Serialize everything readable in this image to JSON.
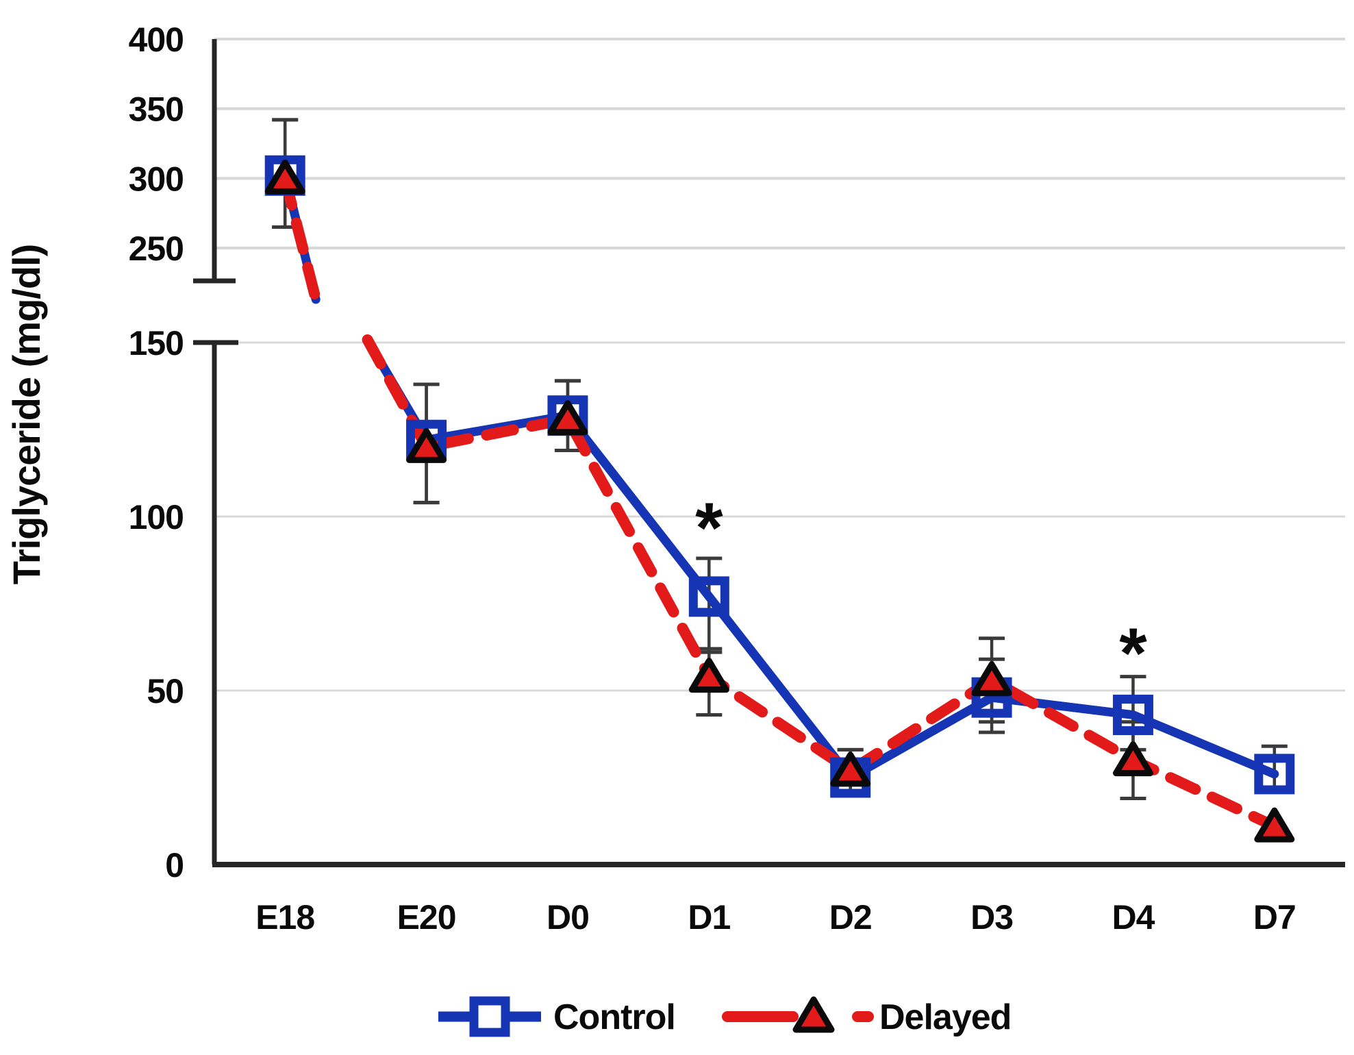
{
  "figure": {
    "background": "#ffffff",
    "description": "Line chart with broken y-axis comparing triglyceride levels of Control and Delayed groups across developmental time points"
  },
  "y_axis": {
    "label": "Triglyceride (mg/dl)",
    "upper_ticks": [
      "400",
      "350",
      "300",
      "250"
    ],
    "lower_ticks": [
      "150",
      "100",
      "50",
      "0"
    ]
  },
  "x_axis": {
    "labels": [
      "E18",
      "E20",
      "D0",
      "D1",
      "D2",
      "D3",
      "D4",
      "D7"
    ]
  },
  "legend": {
    "items": [
      {
        "label": "Control",
        "color": "#1535B5",
        "marker": "open-square",
        "line": "solid"
      },
      {
        "label": "Delayed",
        "color": "#E31A1A",
        "marker": "filled-triangle",
        "line": "dashed"
      }
    ]
  },
  "colors": {
    "control_blue": "#1535B5",
    "delayed_red": "#E31A1A",
    "triangle_edge": "#0a0a0a",
    "axis": "#262626",
    "grid": "#d8d8d8",
    "error_bar": "#3a3a3a",
    "text": "#0a0a0a"
  },
  "chart_data": {
    "type": "line",
    "title": "",
    "xlabel": "",
    "ylabel": "Triglyceride (mg/dl)",
    "grid": true,
    "legend_position": "bottom",
    "broken_y_axis": {
      "upper_range": [
        250,
        400
      ],
      "upper_ticks": [
        400,
        350,
        300,
        250
      ],
      "lower_range": [
        0,
        150
      ],
      "lower_ticks": [
        150,
        100,
        50,
        0
      ]
    },
    "categories": [
      "E18",
      "E20",
      "D0",
      "D1",
      "D2",
      "D3",
      "D4",
      "D7"
    ],
    "series": [
      {
        "name": "Control",
        "color": "#1535B5",
        "marker": "open-square",
        "line_style": "solid",
        "values": [
          302,
          122,
          129,
          77,
          25,
          48,
          43,
          26
        ],
        "error_low": [
          265,
          104,
          119,
          61,
          21,
          38,
          33,
          21
        ],
        "error_high": [
          342,
          138,
          139,
          88,
          33,
          59,
          54,
          34
        ]
      },
      {
        "name": "Delayed",
        "color": "#E31A1A",
        "marker": "filled-triangle",
        "line_style": "dashed",
        "values": [
          300,
          120,
          128,
          54,
          27,
          53,
          30,
          11
        ],
        "error_low": [
          265,
          104,
          119,
          43,
          21,
          41,
          19,
          null
        ],
        "error_high": [
          342,
          138,
          139,
          62,
          33,
          65,
          41,
          null
        ]
      }
    ],
    "significance_markers": [
      {
        "category": "D1",
        "symbol": "*",
        "y_value": 100
      },
      {
        "category": "D4",
        "symbol": "*",
        "y_value": 64
      }
    ]
  }
}
